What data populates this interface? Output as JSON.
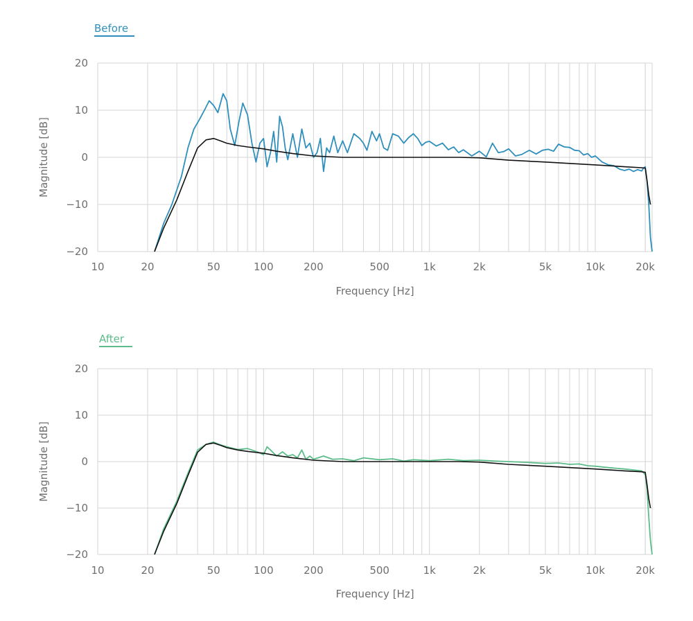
{
  "colors": {
    "before": "#2e8fbc",
    "after": "#5dbd8a",
    "target": "#111111",
    "grid": "#d4d4d4",
    "text": "#6f6f6f"
  },
  "chart_data": [
    {
      "type": "line",
      "legend": "Before",
      "xlabel": "Frequency [Hz]",
      "ylabel": "Magnitude [dB]",
      "xscale": "log",
      "xlim": [
        10,
        22000
      ],
      "ylim": [
        -20,
        20
      ],
      "xticks": [
        10,
        20,
        50,
        100,
        200,
        500,
        1000,
        2000,
        5000,
        10000,
        20000
      ],
      "xtick_labels": [
        "10",
        "20",
        "50",
        "100",
        "200",
        "500",
        "1k",
        "2k",
        "5k",
        "10k",
        "20k"
      ],
      "yticks": [
        -20,
        -10,
        0,
        10,
        20
      ],
      "ytick_labels": [
        "−20",
        "−10",
        "0",
        "10",
        "20"
      ],
      "grid": true,
      "series": [
        {
          "role": "measured",
          "x": [
            22,
            25,
            28,
            32,
            35,
            38,
            41,
            44,
            47,
            50,
            53,
            57,
            60,
            63,
            67,
            71,
            75,
            80,
            85,
            90,
            95,
            100,
            105,
            110,
            115,
            120,
            125,
            130,
            135,
            140,
            150,
            160,
            170,
            180,
            190,
            200,
            210,
            220,
            230,
            240,
            250,
            265,
            280,
            300,
            320,
            350,
            380,
            400,
            420,
            450,
            480,
            500,
            530,
            560,
            600,
            650,
            700,
            750,
            800,
            850,
            900,
            950,
            1000,
            1100,
            1200,
            1300,
            1400,
            1500,
            1600,
            1800,
            2000,
            2200,
            2400,
            2600,
            2800,
            3000,
            3300,
            3600,
            4000,
            4400,
            4800,
            5200,
            5600,
            6000,
            6500,
            7000,
            7500,
            8000,
            8500,
            9000,
            9500,
            10000,
            11000,
            12000,
            13000,
            14000,
            15000,
            16000,
            17000,
            18000,
            19000,
            19500,
            20000,
            20500,
            21000,
            21500,
            22000
          ],
          "y": [
            -20,
            -14,
            -10,
            -4,
            2,
            6,
            8,
            10,
            12,
            11,
            9.5,
            13.5,
            12,
            6,
            2.5,
            7.5,
            11.5,
            9,
            3,
            -1,
            3,
            4,
            -2,
            1,
            5.5,
            -1,
            8.7,
            6.5,
            2,
            -0.5,
            5,
            0,
            6,
            2,
            3,
            0,
            1,
            4,
            -3,
            2,
            1,
            4.5,
            1,
            3.5,
            1,
            5,
            4,
            3,
            1.5,
            5.5,
            3.5,
            5,
            2,
            1.5,
            5,
            4.5,
            3,
            4.2,
            5,
            4,
            2.5,
            3.2,
            3.4,
            2.4,
            3,
            1.6,
            2.2,
            1,
            1.6,
            0.3,
            1.3,
            0.1,
            3,
            1,
            1.2,
            1.8,
            0.3,
            0.6,
            1.5,
            0.7,
            1.5,
            1.7,
            1.3,
            2.8,
            2.2,
            2.1,
            1.5,
            1.4,
            0.5,
            0.8,
            0,
            0.3,
            -1,
            -1.6,
            -1.8,
            -2.5,
            -2.8,
            -2.5,
            -3,
            -2.6,
            -2.9,
            -2.3,
            -2,
            -5,
            -10,
            -17,
            -20
          ]
        },
        {
          "role": "target",
          "x": [
            22,
            25,
            30,
            35,
            40,
            45,
            50,
            55,
            60,
            70,
            80,
            100,
            120,
            150,
            200,
            300,
            500,
            1000,
            1500,
            2000,
            3000,
            5000,
            10000,
            15000,
            19000,
            20000,
            20500,
            21000,
            21500
          ],
          "y": [
            -20,
            -15,
            -9,
            -3,
            2,
            3.7,
            4,
            3.5,
            3,
            2.5,
            2.2,
            1.8,
            1.3,
            0.8,
            0.3,
            0,
            0,
            0,
            0,
            -0.1,
            -0.6,
            -1,
            -1.6,
            -2,
            -2.2,
            -2.3,
            -5,
            -8,
            -10
          ]
        }
      ]
    },
    {
      "type": "line",
      "legend": "After",
      "xlabel": "Frequency [Hz]",
      "ylabel": "Magnitude [dB]",
      "xscale": "log",
      "xlim": [
        10,
        22000
      ],
      "ylim": [
        -20,
        20
      ],
      "xticks": [
        10,
        20,
        50,
        100,
        200,
        500,
        1000,
        2000,
        5000,
        10000,
        20000
      ],
      "xtick_labels": [
        "10",
        "20",
        "50",
        "100",
        "200",
        "500",
        "1k",
        "2k",
        "5k",
        "10k",
        "20k"
      ],
      "yticks": [
        -20,
        -10,
        0,
        10,
        20
      ],
      "ytick_labels": [
        "−20",
        "−10",
        "0",
        "10",
        "20"
      ],
      "grid": true,
      "series": [
        {
          "role": "measured",
          "x": [
            22,
            25,
            30,
            35,
            40,
            45,
            50,
            55,
            60,
            70,
            80,
            90,
            100,
            105,
            110,
            120,
            130,
            140,
            150,
            160,
            170,
            180,
            190,
            200,
            230,
            260,
            300,
            350,
            400,
            500,
            600,
            700,
            800,
            1000,
            1300,
            1600,
            2000,
            2500,
            3000,
            4000,
            5000,
            6000,
            7000,
            8000,
            9000,
            10000,
            12000,
            15000,
            19000,
            20000,
            20500,
            21000,
            21500,
            22000
          ],
          "y": [
            -20,
            -14.5,
            -8.5,
            -2.5,
            2.5,
            3.7,
            4.2,
            3.6,
            3.2,
            2.6,
            2.8,
            2.2,
            1.5,
            3.2,
            2.5,
            1.2,
            2.1,
            1.2,
            1.5,
            0.8,
            2.5,
            0.5,
            1.2,
            0.5,
            1.2,
            0.5,
            0.6,
            0.2,
            0.8,
            0.4,
            0.6,
            0.1,
            0.4,
            0.2,
            0.5,
            0.2,
            0.3,
            0.1,
            0,
            -0.2,
            -0.4,
            -0.3,
            -0.6,
            -0.5,
            -0.9,
            -1,
            -1.3,
            -1.6,
            -2,
            -2.8,
            -6,
            -12,
            -17,
            -20
          ]
        },
        {
          "role": "target",
          "x": [
            22,
            25,
            30,
            35,
            40,
            45,
            50,
            55,
            60,
            70,
            80,
            100,
            120,
            150,
            200,
            300,
            500,
            1000,
            1500,
            2000,
            3000,
            5000,
            10000,
            15000,
            19000,
            20000,
            20500,
            21000,
            21500
          ],
          "y": [
            -20,
            -15,
            -9,
            -3,
            2,
            3.7,
            4,
            3.5,
            3,
            2.5,
            2.2,
            1.8,
            1.3,
            0.8,
            0.3,
            0,
            0,
            0,
            0,
            -0.1,
            -0.6,
            -1,
            -1.6,
            -2,
            -2.2,
            -2.3,
            -5,
            -8,
            -10
          ]
        }
      ]
    }
  ]
}
